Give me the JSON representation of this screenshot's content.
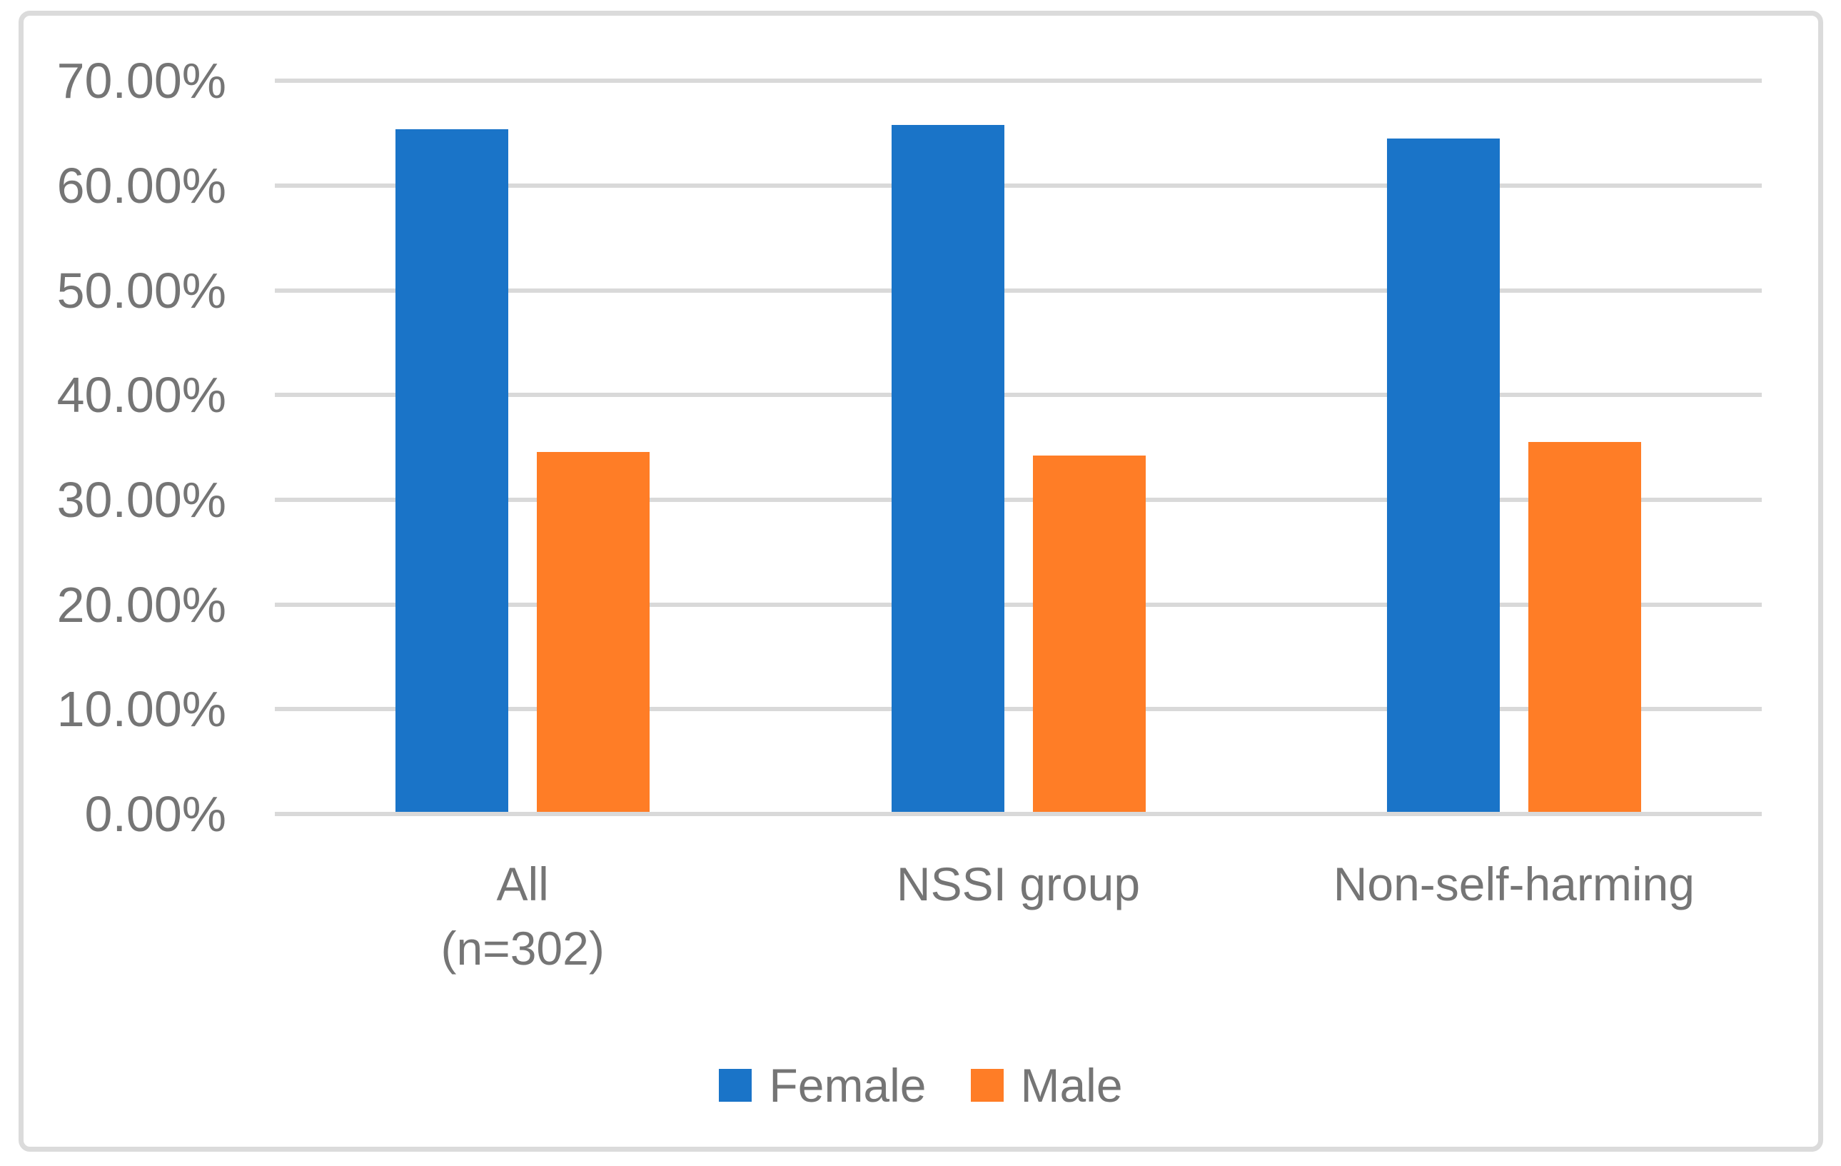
{
  "chart_data": {
    "type": "bar",
    "title": "",
    "xlabel": "",
    "ylabel": "",
    "categories": [
      [
        "All",
        "(n=302)"
      ],
      [
        "NSSI group"
      ],
      [
        "Non-self-harming"
      ]
    ],
    "series": [
      {
        "name": "Female",
        "color": "#1A74C8",
        "values": [
          65.4,
          65.8,
          64.5
        ]
      },
      {
        "name": "Male",
        "color": "#FF7D26",
        "values": [
          34.6,
          34.2,
          35.5
        ]
      }
    ],
    "values_unit": "percent",
    "ylim": [
      0,
      70
    ],
    "ytick_step": 10,
    "ytick_labels": [
      "0.00%",
      "10.00%",
      "20.00%",
      "30.00%",
      "40.00%",
      "50.00%",
      "60.00%",
      "70.00%"
    ],
    "grid": true,
    "legend_position": "bottom"
  },
  "colors": {
    "grid": "#d9d9d9",
    "axis_text": "#757575",
    "frame_border": "#dbdbdb",
    "background": "#ffffff"
  }
}
